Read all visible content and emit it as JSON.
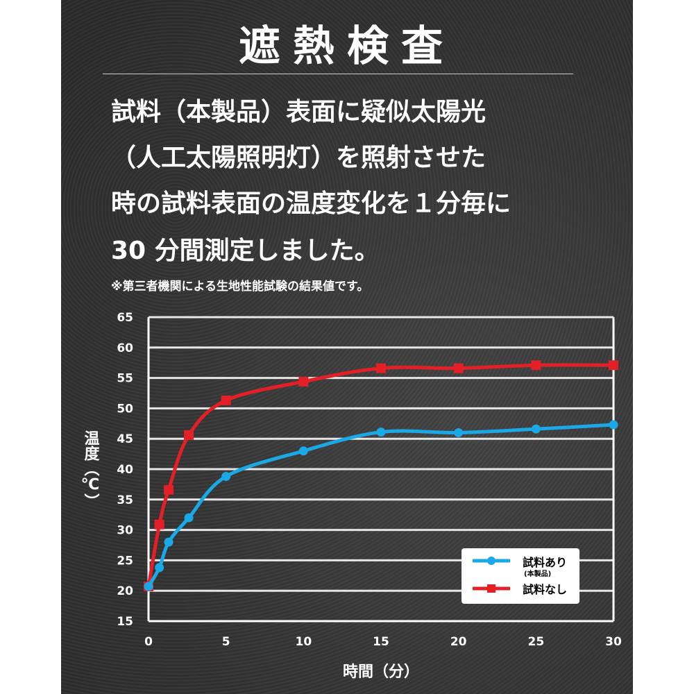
{
  "title": "遮熱検査",
  "description": [
    "試料（本製品）表面に疑似太陽光",
    "（人工太陽照明灯）を照射させた",
    "時の試料表面の温度変化を１分毎に",
    "30 分間測定しました。"
  ],
  "note": "※第三者機関による生地性能試験の結果値です。",
  "chart_data": {
    "type": "line",
    "xlabel": "時間（分）",
    "ylabel": "温度（℃）",
    "xlim": [
      0,
      30
    ],
    "ylim": [
      15,
      65
    ],
    "xticks": [
      0,
      5,
      10,
      15,
      20,
      25,
      30
    ],
    "yticks": [
      15,
      20,
      25,
      30,
      35,
      40,
      45,
      50,
      55,
      60,
      65
    ],
    "grid": true,
    "legend_placement": "bottom-right",
    "series": [
      {
        "name": "試料あり",
        "sublabel": "(本製品)",
        "color": "#1aa8e6",
        "marker": "circle",
        "x": [
          0,
          0.7,
          1.3,
          2.6,
          5,
          10,
          15,
          20,
          25,
          30
        ],
        "y": [
          20.7,
          23.8,
          28,
          32,
          38.8,
          43,
          46.1,
          46,
          46.6,
          47.3
        ]
      },
      {
        "name": "試料なし",
        "color": "#e32027",
        "marker": "square",
        "x": [
          0,
          0.7,
          1.3,
          2.6,
          5,
          10,
          15,
          20,
          25,
          30
        ],
        "y": [
          20.7,
          30.9,
          36.6,
          45.6,
          51.3,
          54.4,
          56.6,
          56.6,
          57.1,
          57.1
        ]
      }
    ]
  }
}
